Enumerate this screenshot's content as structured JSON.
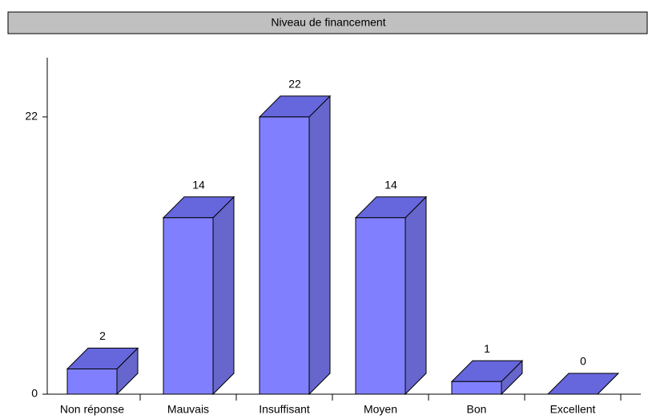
{
  "chart_data": {
    "type": "bar3d",
    "title": "Niveau de financement",
    "categories": [
      "Non réponse",
      "Mauvais",
      "Insuffisant",
      "Moyen",
      "Bon",
      "Excellent"
    ],
    "values": [
      2,
      14,
      22,
      14,
      1,
      0
    ],
    "color": "#8080ff",
    "top_color": "#6666dd",
    "side_color": "#6666cc",
    "ylim": [
      0,
      26.7
    ],
    "yticks": [
      0,
      22
    ]
  }
}
